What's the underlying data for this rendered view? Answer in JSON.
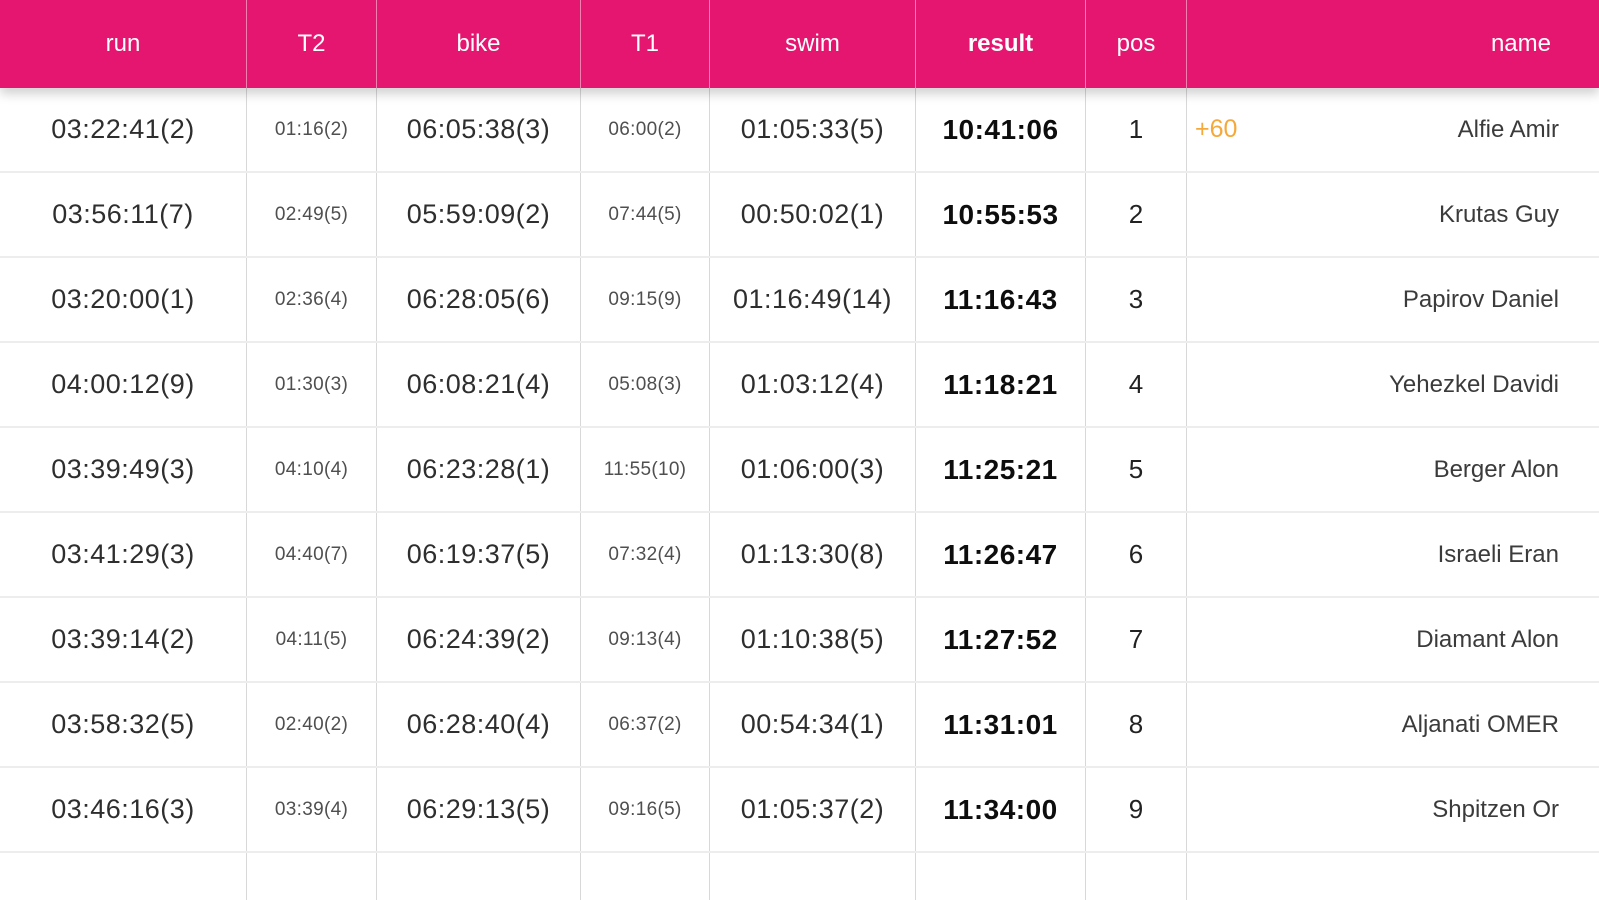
{
  "colors": {
    "header_bg": "#E51670",
    "header_text": "#ffffff",
    "bonus_color": "#F5A93B",
    "result_text": "#0d0d0d"
  },
  "table": {
    "headers": {
      "run": "run",
      "t2": "T2",
      "bike": "bike",
      "t1": "T1",
      "swim": "swim",
      "result": "result",
      "pos": "pos",
      "name": "name"
    },
    "rows": [
      {
        "run": "03:22:41(2)",
        "t2": "01:16(2)",
        "bike": "06:05:38(3)",
        "t1": "06:00(2)",
        "swim": "01:05:33(5)",
        "result": "10:41:06",
        "pos": "1",
        "bonus": "+60",
        "name": "Alfie Amir"
      },
      {
        "run": "03:56:11(7)",
        "t2": "02:49(5)",
        "bike": "05:59:09(2)",
        "t1": "07:44(5)",
        "swim": "00:50:02(1)",
        "result": "10:55:53",
        "pos": "2",
        "bonus": "",
        "name": "Krutas Guy"
      },
      {
        "run": "03:20:00(1)",
        "t2": "02:36(4)",
        "bike": "06:28:05(6)",
        "t1": "09:15(9)",
        "swim": "01:16:49(14)",
        "result": "11:16:43",
        "pos": "3",
        "bonus": "",
        "name": "Papirov Daniel"
      },
      {
        "run": "04:00:12(9)",
        "t2": "01:30(3)",
        "bike": "06:08:21(4)",
        "t1": "05:08(3)",
        "swim": "01:03:12(4)",
        "result": "11:18:21",
        "pos": "4",
        "bonus": "",
        "name": "Yehezkel Davidi"
      },
      {
        "run": "03:39:49(3)",
        "t2": "04:10(4)",
        "bike": "06:23:28(1)",
        "t1": "11:55(10)",
        "swim": "01:06:00(3)",
        "result": "11:25:21",
        "pos": "5",
        "bonus": "",
        "name": "Berger Alon"
      },
      {
        "run": "03:41:29(3)",
        "t2": "04:40(7)",
        "bike": "06:19:37(5)",
        "t1": "07:32(4)",
        "swim": "01:13:30(8)",
        "result": "11:26:47",
        "pos": "6",
        "bonus": "",
        "name": "Israeli Eran"
      },
      {
        "run": "03:39:14(2)",
        "t2": "04:11(5)",
        "bike": "06:24:39(2)",
        "t1": "09:13(4)",
        "swim": "01:10:38(5)",
        "result": "11:27:52",
        "pos": "7",
        "bonus": "",
        "name": "Diamant Alon"
      },
      {
        "run": "03:58:32(5)",
        "t2": "02:40(2)",
        "bike": "06:28:40(4)",
        "t1": "06:37(2)",
        "swim": "00:54:34(1)",
        "result": "11:31:01",
        "pos": "8",
        "bonus": "",
        "name": "Aljanati OMER"
      },
      {
        "run": "03:46:16(3)",
        "t2": "03:39(4)",
        "bike": "06:29:13(5)",
        "t1": "09:16(5)",
        "swim": "01:05:37(2)",
        "result": "11:34:00",
        "pos": "9",
        "bonus": "",
        "name": "Shpitzen Or"
      }
    ]
  }
}
